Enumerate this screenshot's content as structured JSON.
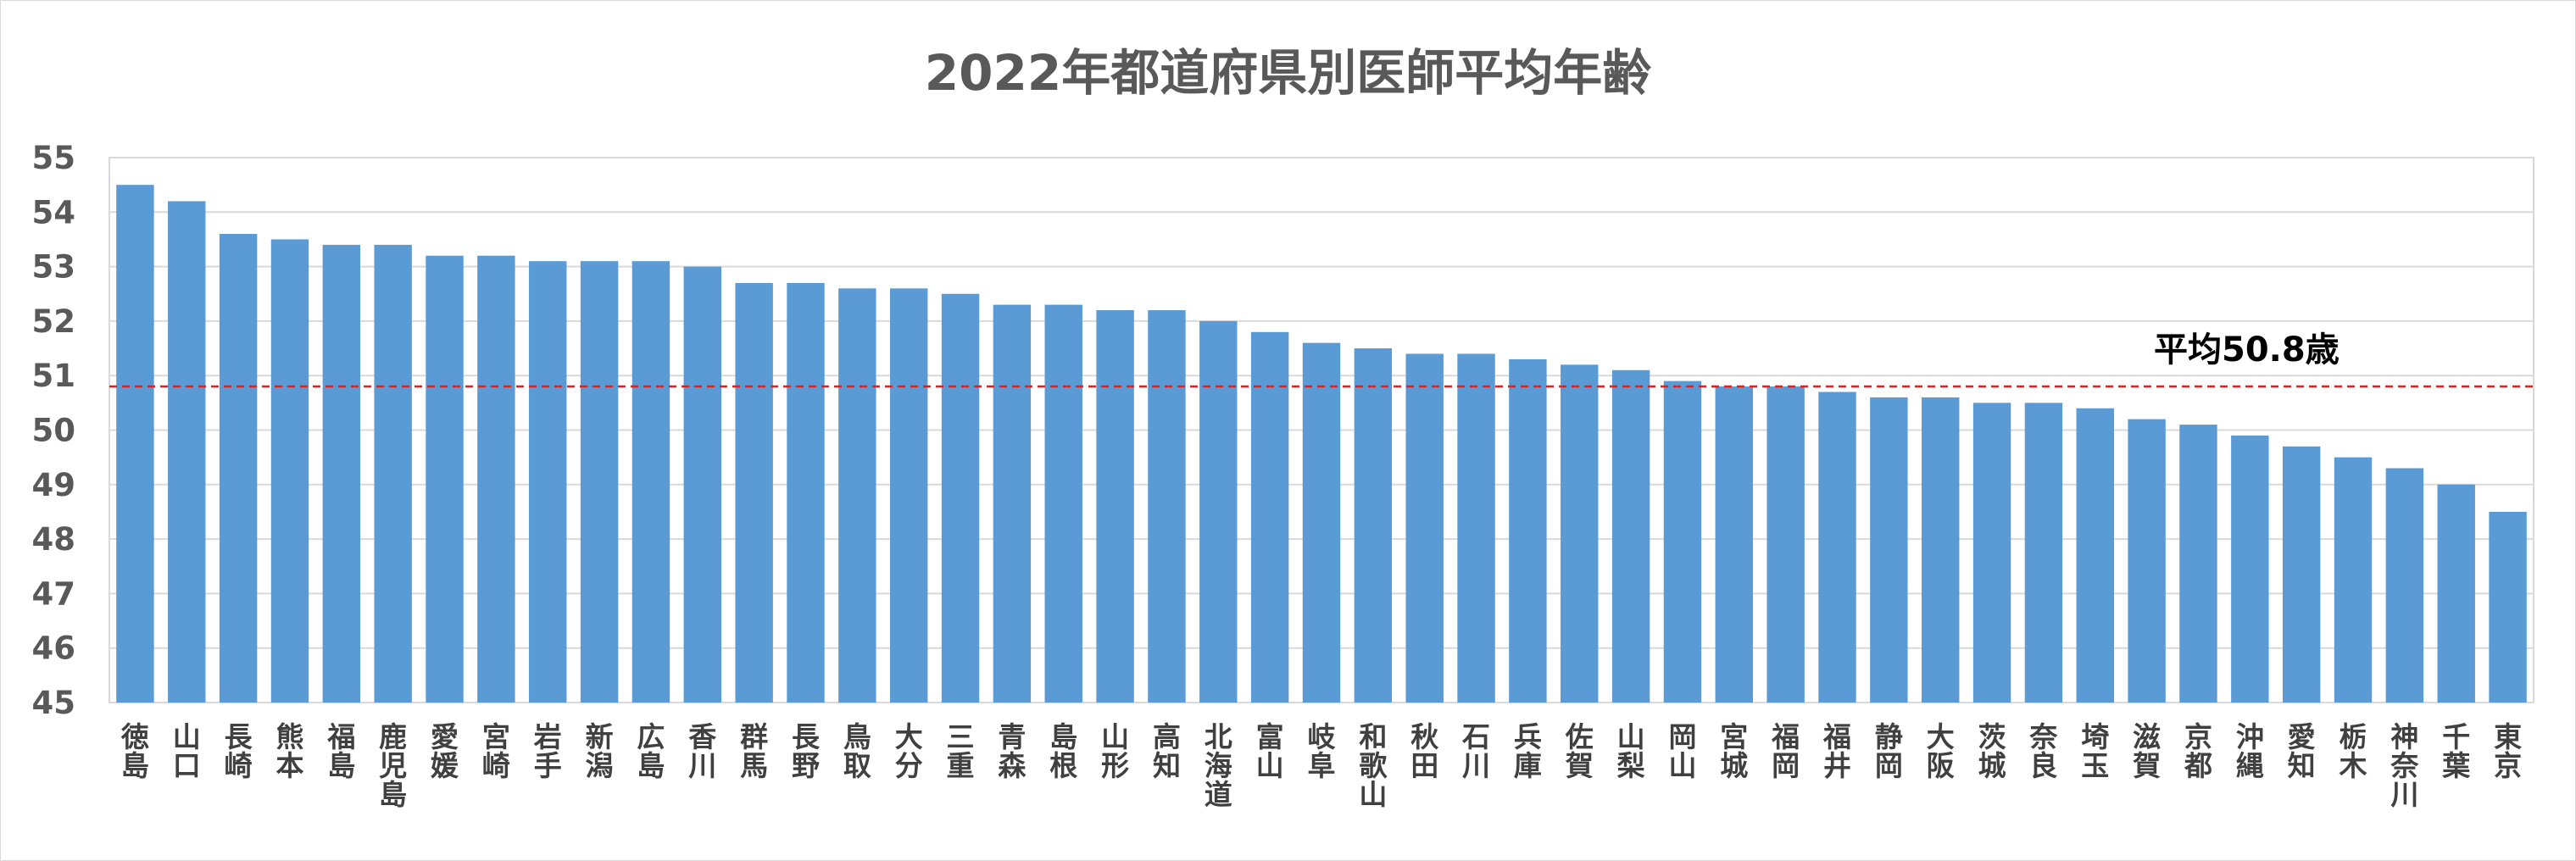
{
  "chart_data": {
    "type": "bar",
    "title": "2022年都道府県別医師平均年齢",
    "xlabel": "",
    "ylabel": "",
    "ylim": [
      45,
      55
    ],
    "yticks": [
      45,
      46,
      47,
      48,
      49,
      50,
      51,
      52,
      53,
      54,
      55
    ],
    "grid": true,
    "legend": "none",
    "bar_color": "#5b9bd5",
    "categories": [
      "徳島",
      "山口",
      "長崎",
      "熊本",
      "福島",
      "鹿児島",
      "愛媛",
      "宮崎",
      "岩手",
      "新潟",
      "広島",
      "香川",
      "群馬",
      "長野",
      "鳥取",
      "大分",
      "三重",
      "青森",
      "島根",
      "山形",
      "高知",
      "北海道",
      "富山",
      "岐阜",
      "和歌山",
      "秋田",
      "石川",
      "兵庫",
      "佐賀",
      "山梨",
      "岡山",
      "宮城",
      "福岡",
      "福井",
      "静岡",
      "大阪",
      "茨城",
      "奈良",
      "埼玉",
      "滋賀",
      "京都",
      "沖縄",
      "愛知",
      "栃木",
      "神奈川",
      "千葉",
      "東京"
    ],
    "values": [
      54.5,
      54.2,
      53.6,
      53.5,
      53.4,
      53.4,
      53.2,
      53.2,
      53.1,
      53.1,
      53.1,
      53.0,
      52.7,
      52.7,
      52.6,
      52.6,
      52.5,
      52.3,
      52.3,
      52.2,
      52.2,
      52.0,
      51.8,
      51.6,
      51.5,
      51.4,
      51.4,
      51.3,
      51.2,
      51.1,
      50.9,
      50.8,
      50.8,
      50.7,
      50.6,
      50.6,
      50.5,
      50.5,
      50.4,
      50.2,
      50.1,
      49.9,
      49.7,
      49.5,
      49.3,
      49.0,
      48.5
    ],
    "average": {
      "value": 50.8,
      "label": "平均50.8歳",
      "color": "#e02020"
    }
  }
}
